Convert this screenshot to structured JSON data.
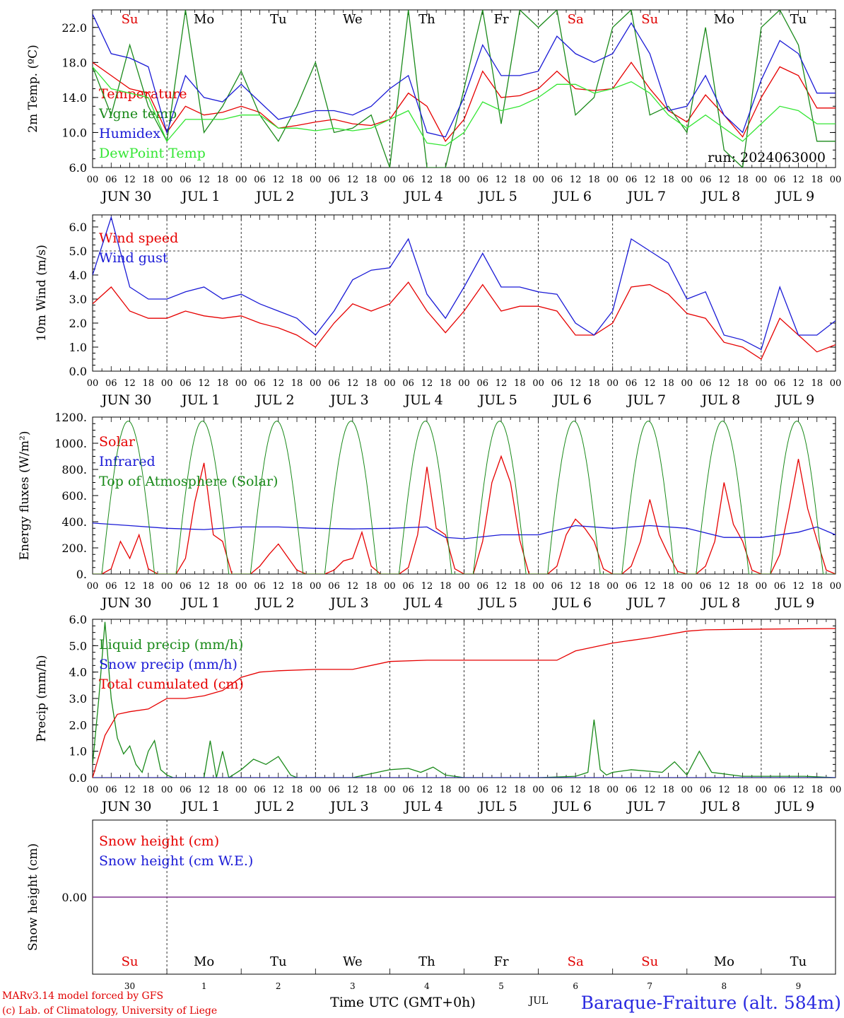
{
  "days": {
    "weekday_top": [
      "Su",
      "Mo",
      "Tu",
      "We",
      "Th",
      "Fr",
      "Sa",
      "Su",
      "Mo",
      "Tu"
    ],
    "weekday_colors": [
      "#e00000",
      "#000000",
      "#000000",
      "#000000",
      "#000000",
      "#000000",
      "#e00000",
      "#e00000",
      "#000000",
      "#000000"
    ],
    "date_labels": [
      "JUN 30",
      "JUL  1",
      "JUL  2",
      "JUL  3",
      "JUL  4",
      "JUL  5",
      "JUL  6",
      "JUL  7",
      "JUL  8",
      "JUL  9"
    ],
    "hour_labels": [
      "00",
      "06",
      "12",
      "18"
    ],
    "bottom_numbers": [
      "30",
      "1",
      "2",
      "3",
      "4",
      "5",
      "6",
      "7",
      "8",
      "9"
    ],
    "bottom_month": "JUL"
  },
  "footer": {
    "model_line": "MARv3.14 model forced by GFS",
    "credit_line": "(c) Lab. of Climatology, University of Liege",
    "xlabel": "Time UTC (GMT+0h)",
    "station": "Baraque-Fraiture (alt. 584m)"
  },
  "colors": {
    "red": "#e60000",
    "green": "#1a8a1a",
    "blue": "#1a1ad6",
    "lightgreen": "#33e633",
    "purple": "#7a2a8a"
  },
  "chart_data": [
    {
      "id": "temperature",
      "type": "line",
      "ylabel": "2m Temp. (ºC)",
      "ylim": [
        6,
        24
      ],
      "yticks": [
        "6.0",
        "10.0",
        "14.0",
        "18.0",
        "22.0"
      ],
      "annotation": "run: 2024063000",
      "x_unit": "hours since JUN 30 00 UTC",
      "series": [
        {
          "name": "Temperature",
          "color": "red",
          "x": [
            0,
            6,
            12,
            18,
            24,
            30,
            36,
            42,
            48,
            54,
            60,
            66,
            72,
            78,
            84,
            90,
            96,
            102,
            108,
            114,
            120,
            126,
            132,
            138,
            144,
            150,
            156,
            162,
            168,
            174,
            180,
            186,
            192,
            198,
            204,
            210,
            216,
            222,
            228,
            234,
            240
          ],
          "y": [
            18,
            16.5,
            15,
            14.5,
            10,
            13,
            12,
            12.3,
            13,
            12.3,
            10.5,
            10.8,
            11.2,
            11.5,
            11,
            10.8,
            11.5,
            14.5,
            13,
            9,
            11.5,
            17,
            14,
            14.2,
            15,
            17,
            15,
            14.8,
            15,
            18,
            15,
            12.5,
            11.2,
            14.3,
            12,
            9.5,
            14,
            17.5,
            16.5,
            12.8,
            12.8
          ]
        },
        {
          "name": "Vigne temp",
          "color": "green",
          "x": [
            0,
            6,
            12,
            18,
            24,
            30,
            36,
            42,
            48,
            54,
            60,
            66,
            72,
            78,
            84,
            90,
            96,
            102,
            108,
            114,
            120,
            126,
            132,
            138,
            144,
            150,
            156,
            162,
            168,
            174,
            180,
            186,
            192,
            198,
            204,
            210,
            216,
            222,
            228,
            234,
            240
          ],
          "y": [
            17.5,
            12,
            20,
            13,
            9,
            24,
            10,
            13,
            17,
            12,
            9,
            13,
            18,
            10,
            10.5,
            12,
            6,
            24,
            6,
            6,
            15,
            24,
            11,
            24,
            22,
            24,
            12,
            14,
            22,
            24,
            12,
            13,
            10,
            22,
            8,
            6,
            22,
            24,
            20,
            9,
            9
          ]
        },
        {
          "name": "Humidex",
          "color": "blue",
          "x": [
            0,
            6,
            12,
            18,
            24,
            30,
            36,
            42,
            48,
            54,
            60,
            66,
            72,
            78,
            84,
            90,
            96,
            102,
            108,
            114,
            120,
            126,
            132,
            138,
            144,
            150,
            156,
            162,
            168,
            174,
            180,
            186,
            192,
            198,
            204,
            210,
            216,
            222,
            228,
            234,
            240
          ],
          "y": [
            23.5,
            19,
            18.5,
            17.5,
            10,
            16.5,
            14,
            13.5,
            15.5,
            13.5,
            11.5,
            12,
            12.5,
            12.5,
            12,
            13,
            15,
            16.5,
            10,
            9.5,
            14,
            20,
            16.5,
            16.5,
            17,
            21,
            19,
            18,
            19,
            22.5,
            19,
            12.5,
            13,
            16.5,
            12,
            10,
            16,
            20.5,
            19,
            14.5,
            14.5
          ]
        },
        {
          "name": "DewPoint Temp",
          "color": "lightgreen",
          "x": [
            0,
            6,
            12,
            18,
            24,
            30,
            36,
            42,
            48,
            54,
            60,
            66,
            72,
            78,
            84,
            90,
            96,
            102,
            108,
            114,
            120,
            126,
            132,
            138,
            144,
            150,
            156,
            162,
            168,
            174,
            180,
            186,
            192,
            198,
            204,
            210,
            216,
            222,
            228,
            234,
            240
          ],
          "y": [
            17.5,
            15,
            14.5,
            14,
            9,
            11.5,
            11.5,
            11.5,
            12,
            12,
            10.5,
            10.5,
            10.2,
            10.5,
            10.2,
            10.5,
            11.5,
            12.5,
            8.8,
            8.5,
            10,
            13.5,
            12.5,
            13,
            14,
            15.5,
            15.5,
            14.5,
            15,
            15.8,
            14.5,
            12,
            10.5,
            12,
            10.5,
            9,
            11,
            13,
            12.5,
            11,
            11
          ]
        }
      ]
    },
    {
      "id": "wind",
      "type": "line",
      "ylabel": "10m Wind (m/s)",
      "ylim": [
        0,
        6.5
      ],
      "yticks": [
        "0.0",
        "1.0",
        "2.0",
        "3.0",
        "4.0",
        "5.0",
        "6.0"
      ],
      "reference_line": 5.0,
      "series": [
        {
          "name": "Wind speed",
          "color": "red",
          "x": [
            0,
            6,
            12,
            18,
            24,
            30,
            36,
            42,
            48,
            54,
            60,
            66,
            72,
            78,
            84,
            90,
            96,
            102,
            108,
            114,
            120,
            126,
            132,
            138,
            144,
            150,
            156,
            162,
            168,
            174,
            180,
            186,
            192,
            198,
            204,
            210,
            216,
            222,
            228,
            234,
            240
          ],
          "y": [
            2.8,
            3.5,
            2.5,
            2.2,
            2.2,
            2.5,
            2.3,
            2.2,
            2.3,
            2,
            1.8,
            1.5,
            1.0,
            2,
            2.8,
            2.5,
            2.8,
            3.7,
            2.5,
            1.6,
            2.5,
            3.6,
            2.5,
            2.7,
            2.7,
            2.5,
            1.5,
            1.5,
            2.0,
            3.5,
            3.6,
            3.2,
            2.4,
            2.2,
            1.2,
            1.0,
            0.5,
            2.2,
            1.5,
            0.8,
            1.1
          ]
        },
        {
          "name": "Wind gust",
          "color": "blue",
          "x": [
            0,
            6,
            12,
            18,
            24,
            30,
            36,
            42,
            48,
            54,
            60,
            66,
            72,
            78,
            84,
            90,
            96,
            102,
            108,
            114,
            120,
            126,
            132,
            138,
            144,
            150,
            156,
            162,
            168,
            174,
            180,
            186,
            192,
            198,
            204,
            210,
            216,
            222,
            228,
            234,
            240
          ],
          "y": [
            4,
            6.4,
            3.5,
            3.0,
            3.0,
            3.3,
            3.5,
            3.0,
            3.2,
            2.8,
            2.5,
            2.2,
            1.5,
            2.5,
            3.8,
            4.2,
            4.3,
            5.5,
            3.2,
            2.2,
            3.5,
            4.9,
            3.5,
            3.5,
            3.3,
            3.2,
            2.0,
            1.5,
            2.5,
            5.5,
            5.0,
            4.5,
            3.0,
            3.3,
            1.5,
            1.3,
            0.9,
            3.5,
            1.5,
            1.5,
            2.1
          ]
        }
      ]
    },
    {
      "id": "energy",
      "type": "line",
      "ylabel": "Energy fluxes (W/m²)",
      "ylim": [
        0,
        1200
      ],
      "yticks": [
        "0.",
        "200.",
        "400.",
        "600.",
        "800.",
        "1000.",
        "1200."
      ],
      "series": [
        {
          "name": "Solar",
          "color": "red",
          "x": [
            0,
            3,
            6,
            9,
            12,
            15,
            18,
            21,
            24,
            27,
            30,
            33,
            36,
            39,
            42,
            45,
            48,
            51,
            54,
            57,
            60,
            63,
            66,
            69,
            72,
            75,
            78,
            81,
            84,
            87,
            90,
            93,
            96,
            99,
            102,
            105,
            108,
            111,
            114,
            117,
            120,
            123,
            126,
            129,
            132,
            135,
            138,
            141,
            144,
            147,
            150,
            153,
            156,
            159,
            162,
            165,
            168,
            171,
            174,
            177,
            180,
            183,
            186,
            189,
            192,
            195,
            198,
            201,
            204,
            207,
            210,
            213,
            216,
            219,
            222,
            225,
            228,
            231,
            234,
            237,
            240
          ],
          "y": [
            0,
            0,
            40,
            250,
            120,
            300,
            40,
            0,
            0,
            0,
            120,
            550,
            850,
            300,
            250,
            0,
            0,
            0,
            60,
            150,
            230,
            130,
            30,
            0,
            0,
            0,
            30,
            100,
            120,
            320,
            60,
            0,
            0,
            0,
            50,
            300,
            820,
            350,
            300,
            40,
            0,
            0,
            250,
            700,
            900,
            700,
            260,
            0,
            0,
            0,
            60,
            300,
            420,
            350,
            250,
            40,
            0,
            0,
            60,
            250,
            570,
            300,
            150,
            20,
            0,
            0,
            60,
            250,
            700,
            380,
            250,
            30,
            0,
            0,
            150,
            500,
            880,
            500,
            260,
            30,
            0
          ]
        },
        {
          "name": "Infrared",
          "color": "blue",
          "x": [
            0,
            12,
            24,
            36,
            48,
            60,
            72,
            84,
            96,
            108,
            114,
            120,
            132,
            144,
            156,
            168,
            180,
            192,
            204,
            216,
            228,
            234,
            240
          ],
          "y": [
            390,
            370,
            350,
            340,
            360,
            360,
            350,
            345,
            350,
            360,
            280,
            270,
            300,
            300,
            370,
            350,
            370,
            350,
            280,
            280,
            320,
            360,
            300
          ]
        },
        {
          "name": "Top of Atmosphere (Solar)",
          "color": "green",
          "x": "generated",
          "y": "generated",
          "peak": 1170,
          "day_start_hour": 3,
          "day_end_hour": 20
        }
      ]
    },
    {
      "id": "precip",
      "type": "line",
      "ylabel": "Precip (mm/h)",
      "ylim": [
        0,
        6
      ],
      "yticks": [
        "0.0",
        "1.0",
        "2.0",
        "3.0",
        "4.0",
        "5.0",
        "6.0"
      ],
      "series": [
        {
          "name": "Liquid precip (mm/h)",
          "color": "green",
          "x": [
            0,
            2,
            4,
            6,
            8,
            10,
            12,
            14,
            16,
            18,
            20,
            22,
            24,
            26,
            30,
            36,
            38,
            40,
            42,
            44,
            48,
            52,
            56,
            60,
            64,
            66,
            72,
            84,
            96,
            102,
            106,
            110,
            114,
            120,
            144,
            156,
            160,
            162,
            164,
            166,
            168,
            174,
            184,
            188,
            192,
            196,
            200,
            210,
            220,
            230,
            240
          ],
          "y": [
            0.5,
            3.0,
            5.9,
            3.0,
            1.5,
            0.9,
            1.2,
            0.5,
            0.2,
            1.0,
            1.4,
            0.3,
            0.1,
            0.0,
            0.0,
            0.0,
            1.4,
            0.0,
            1.0,
            0.0,
            0.3,
            0.7,
            0.5,
            0.8,
            0.1,
            0.0,
            0.0,
            0.0,
            0.3,
            0.35,
            0.2,
            0.4,
            0.1,
            0.0,
            0.0,
            0.05,
            0.2,
            2.2,
            0.3,
            0.1,
            0.2,
            0.3,
            0.2,
            0.6,
            0.1,
            1.0,
            0.2,
            0.05,
            0.05,
            0.05,
            0.0
          ]
        },
        {
          "name": "Snow precip (mm/h)",
          "color": "blue",
          "x": [
            0,
            240
          ],
          "y": [
            0,
            0
          ]
        },
        {
          "name": "Total cumulated (cm)",
          "color": "red",
          "x": [
            0,
            4,
            8,
            12,
            18,
            24,
            30,
            36,
            42,
            48,
            54,
            60,
            72,
            84,
            96,
            108,
            120,
            138,
            150,
            156,
            168,
            180,
            192,
            198,
            210,
            220,
            240
          ],
          "y": [
            0.0,
            1.6,
            2.4,
            2.5,
            2.6,
            3.0,
            3.0,
            3.1,
            3.3,
            3.8,
            4.0,
            4.05,
            4.1,
            4.1,
            4.4,
            4.45,
            4.45,
            4.45,
            4.45,
            4.8,
            5.1,
            5.3,
            5.55,
            5.6,
            5.62,
            5.63,
            5.65
          ]
        }
      ]
    },
    {
      "id": "snow",
      "type": "line",
      "ylabel": "Snow height (cm)",
      "ylim": [
        -1,
        1
      ],
      "yticks": [
        "0.00"
      ],
      "series": [
        {
          "name": "Snow height (cm)",
          "color": "red",
          "x": [
            0,
            240
          ],
          "y": [
            0,
            0
          ]
        },
        {
          "name": "Snow height (cm W.E.)",
          "color": "blue",
          "x": [
            0,
            240
          ],
          "y": [
            0,
            0
          ]
        }
      ]
    }
  ]
}
